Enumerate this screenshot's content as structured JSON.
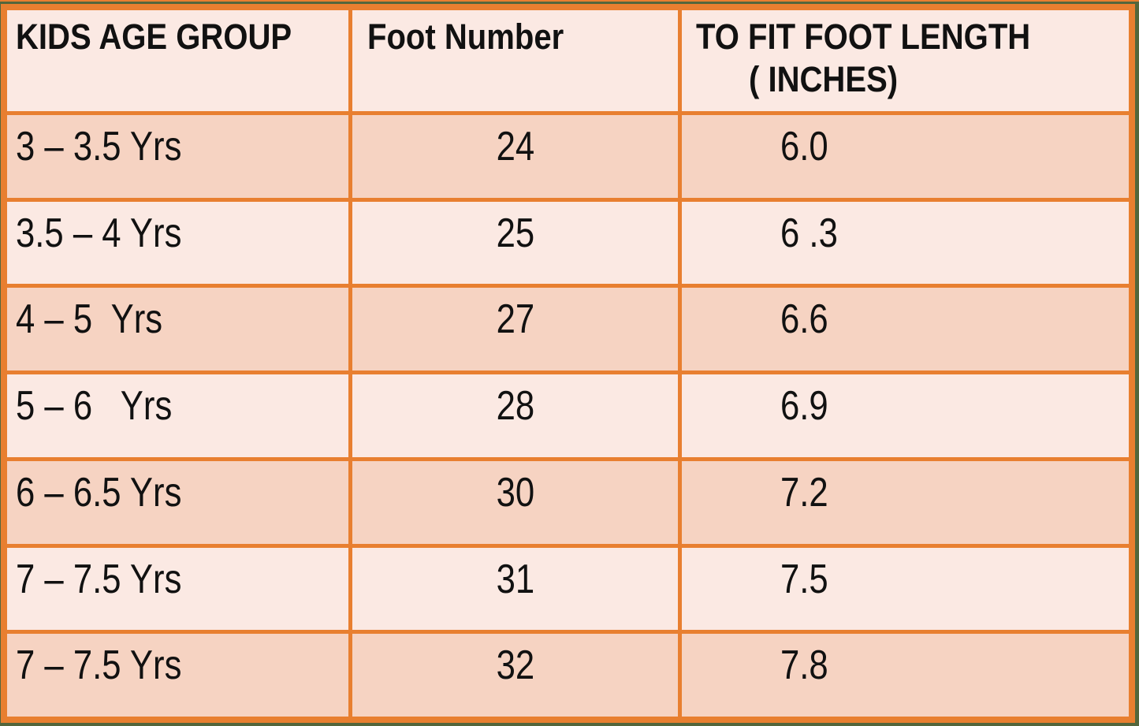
{
  "chart_data": {
    "type": "table",
    "columns": [
      {
        "label": "KIDS AGE GROUP"
      },
      {
        "label": "Foot Number"
      },
      {
        "label": "TO FIT FOOT LENGTH",
        "label_line2": "( INCHES)"
      }
    ],
    "rows": [
      [
        "3 – 3.5 Yrs",
        "24",
        "6.0"
      ],
      [
        "3.5 – 4 Yrs",
        "25",
        "6 .3"
      ],
      [
        "4 – 5  Yrs",
        "27",
        "6.6"
      ],
      [
        "5 – 6   Yrs",
        "28",
        "6.9"
      ],
      [
        "6 – 6.5 Yrs",
        "30",
        "7.2"
      ],
      [
        "7 – 7.5 Yrs",
        "31",
        "7.5"
      ],
      [
        "7 – 7.5 Yrs",
        "32",
        "7.8"
      ]
    ]
  },
  "colors": {
    "border_orange": "#e87f30",
    "row_light": "#fbe9e3",
    "row_salmon": "#f6d3c2",
    "frame_green": "#53663c",
    "text": "#111111"
  }
}
